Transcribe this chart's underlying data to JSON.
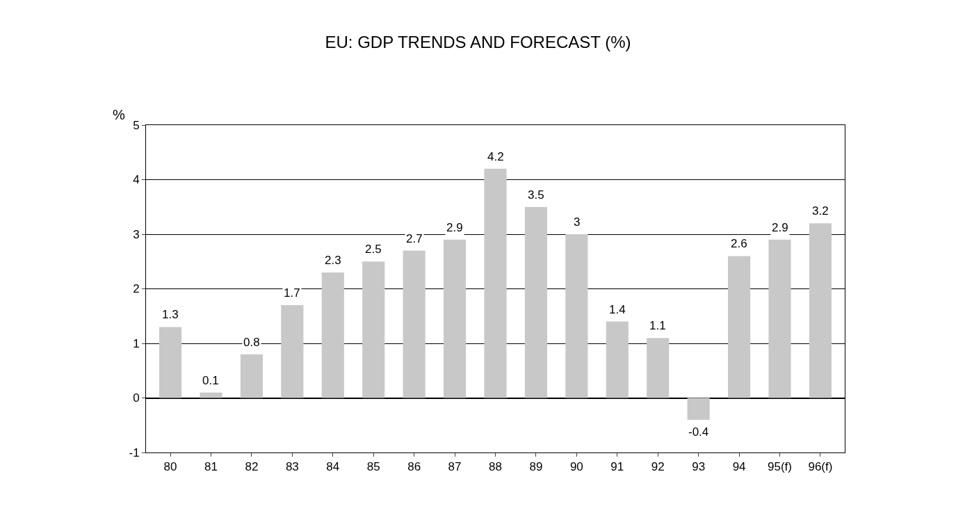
{
  "chart_data": {
    "type": "bar",
    "title": "EU: GDP TRENDS AND FORECAST (%)",
    "ylabel": "%",
    "categories": [
      "80",
      "81",
      "82",
      "83",
      "84",
      "85",
      "86",
      "87",
      "88",
      "89",
      "90",
      "91",
      "92",
      "93",
      "94",
      "95(f)",
      "96(f)"
    ],
    "values": [
      1.3,
      0.1,
      0.8,
      1.7,
      2.3,
      2.5,
      2.7,
      2.9,
      4.2,
      3.5,
      3,
      1.4,
      1.1,
      -0.4,
      2.6,
      2.9,
      3.2
    ],
    "color": "#c8c8c8",
    "ylim": [
      -1,
      5
    ],
    "yticks": [
      -1,
      0,
      1,
      2,
      3,
      4,
      5
    ],
    "grid": "y",
    "data_labels": true
  }
}
